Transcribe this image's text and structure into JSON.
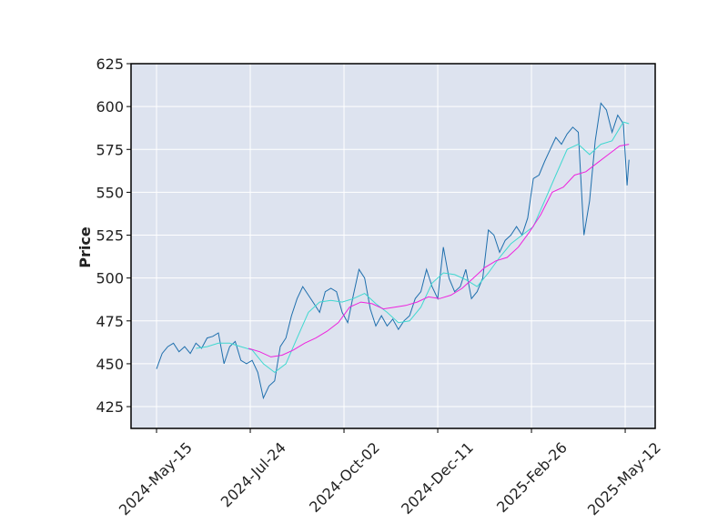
{
  "chart_data": {
    "type": "line",
    "ylabel": "Price",
    "xlim": [
      -13.6,
      266
    ],
    "ylim": [
      412.3,
      625
    ],
    "xticks": [
      {
        "value": 0,
        "label": "2024-May-15"
      },
      {
        "value": 50,
        "label": "2024-Jul-24"
      },
      {
        "value": 100,
        "label": "2024-Oct-02"
      },
      {
        "value": 150,
        "label": "2024-Dec-11"
      },
      {
        "value": 200,
        "label": "2025-Feb-26"
      },
      {
        "value": 250,
        "label": "2025-May-12"
      }
    ],
    "yticks": [
      425,
      450,
      475,
      500,
      525,
      550,
      575,
      600,
      625
    ],
    "grid": true,
    "background": "#dde3ef",
    "series": [
      {
        "color": "#1f6fad",
        "x": [
          0,
          3,
          6,
          9,
          12,
          15,
          18,
          21,
          24,
          27,
          30,
          33,
          36,
          39,
          42,
          45,
          48,
          51,
          54,
          57,
          60,
          63,
          66,
          69,
          72,
          75,
          78,
          81,
          84,
          87,
          90,
          93,
          96,
          99,
          102,
          105,
          108,
          111,
          114,
          117,
          120,
          123,
          126,
          129,
          132,
          135,
          138,
          141,
          144,
          147,
          150,
          153,
          156,
          159,
          162,
          165,
          168,
          171,
          174,
          177,
          180,
          183,
          186,
          189,
          192,
          195,
          198,
          201,
          204,
          207,
          210,
          213,
          216,
          219,
          222,
          225,
          228,
          231,
          234,
          237,
          240,
          243,
          246,
          249,
          251,
          252
        ],
        "values": [
          447,
          456,
          460,
          462,
          457,
          460,
          456,
          462,
          459,
          465,
          466,
          468,
          450,
          460,
          463,
          452,
          450,
          452,
          445,
          430,
          437,
          440,
          460,
          465,
          478,
          488,
          495,
          490,
          485,
          480,
          492,
          494,
          492,
          480,
          474,
          490,
          505,
          500,
          482,
          472,
          478,
          472,
          476,
          470,
          475,
          478,
          488,
          492,
          505,
          495,
          488,
          518,
          500,
          492,
          495,
          505,
          488,
          492,
          500,
          528,
          525,
          515,
          522,
          525,
          530,
          525,
          535,
          558,
          560,
          568,
          575,
          582,
          578,
          584,
          588,
          585,
          525,
          545,
          580,
          602,
          598,
          585,
          595,
          590,
          554,
          569
        ]
      },
      {
        "color": "#40d8d0",
        "x": [
          21,
          27,
          33,
          39,
          45,
          51,
          57,
          63,
          69,
          75,
          81,
          87,
          93,
          99,
          105,
          111,
          117,
          123,
          129,
          135,
          141,
          147,
          153,
          159,
          165,
          171,
          177,
          183,
          189,
          195,
          201,
          207,
          213,
          219,
          225,
          231,
          237,
          243,
          249,
          252
        ],
        "values": [
          459,
          460,
          462,
          462,
          460,
          458,
          450,
          445,
          450,
          465,
          480,
          486,
          487,
          486,
          488,
          491,
          485,
          480,
          474,
          475,
          483,
          497,
          503,
          502,
          499,
          495,
          503,
          512,
          520,
          525,
          530,
          545,
          560,
          575,
          578,
          572,
          578,
          580,
          591,
          590
        ]
      },
      {
        "color": "#ee22dd",
        "x": [
          49,
          55,
          61,
          67,
          73,
          79,
          85,
          91,
          97,
          103,
          109,
          115,
          121,
          127,
          133,
          139,
          145,
          151,
          157,
          163,
          169,
          175,
          181,
          187,
          193,
          199,
          205,
          211,
          217,
          223,
          229,
          235,
          241,
          247,
          252
        ],
        "values": [
          459,
          457,
          454,
          455,
          458,
          462,
          465,
          469,
          474,
          483,
          486,
          485,
          482,
          483,
          484,
          486,
          489,
          488,
          490,
          494,
          500,
          506,
          510,
          512,
          518,
          527,
          537,
          550,
          553,
          560,
          562,
          567,
          572,
          577,
          578
        ]
      }
    ]
  }
}
